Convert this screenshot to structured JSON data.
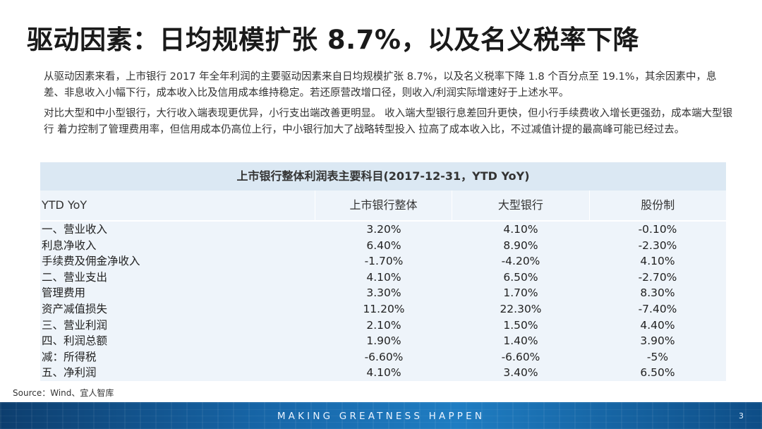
{
  "title": "驱动因素：日均规模扩张 8.7%，以及名义税率下降",
  "paragraphs": [
    "从驱动因素来看，上市银行 2017 年全年利润的主要驱动因素来自日均规模扩张 8.7%，以及名义税率下降 1.8 个百分点至 19.1%，其余因素中，息差、非息收入小幅下行，成本收入比及信用成本维持稳定。若还原营改增口径，则收入/利润实际增速好于上述水平。",
    "对比大型和中小型银行，大行收入端表现更优异，小行支出端改善更明显。 收入端大型银行息差回升更快，但小行手续费收入增长更强劲，成本端大型银行 着力控制了管理费用率，但信用成本仍高位上行，中小银行加大了战略转型投入 拉高了成本收入比，不过减值计提的最高峰可能已经过去。"
  ],
  "table": {
    "caption": "上市银行整体利润表主要科目(2017-12-31，YTD  YoY)",
    "headers": [
      "YTD YoY",
      "上市银行整体",
      "大型银行",
      "股份制"
    ],
    "rows": [
      [
        "一、营业收入",
        "3.20%",
        "4.10%",
        "-0.10%"
      ],
      [
        "利息净收入",
        "6.40%",
        "8.90%",
        "-2.30%"
      ],
      [
        "手续费及佣金净收入",
        "-1.70%",
        "-4.20%",
        "4.10%"
      ],
      [
        "二、营业支出",
        "4.10%",
        "6.50%",
        "-2.70%"
      ],
      [
        "管理费用",
        "3.30%",
        "1.70%",
        "8.30%"
      ],
      [
        "资产减值损失",
        "11.20%",
        "22.30%",
        "-7.40%"
      ],
      [
        "三、营业利润",
        "2.10%",
        "1.50%",
        "4.40%"
      ],
      [
        "四、利润总额",
        "1.90%",
        "1.40%",
        "3.90%"
      ],
      [
        "减：所得税",
        "-6.60%",
        "-6.60%",
        "-5%"
      ],
      [
        "五、净利润",
        "4.10%",
        "3.40%",
        "6.50%"
      ]
    ]
  },
  "source": "Source：Wind、宜人智库",
  "footer": {
    "slogan": "MAKING GREATNESS HAPPEN",
    "page_number": "3"
  }
}
